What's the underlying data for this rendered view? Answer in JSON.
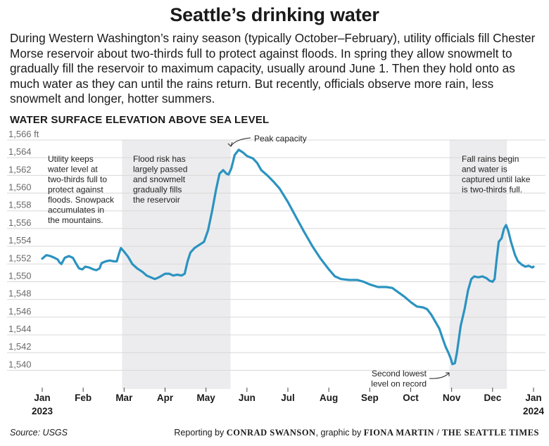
{
  "title": "Seattle’s drinking water",
  "intro": "During Western Washington’s rainy season (typically October–February), utility officials fill Chester Morse reservoir about two-thirds full to protect against floods. In spring they allow snowmelt to gradually fill the reservoir to maximum capacity, usually around June 1. Then they hold onto as much water as they can until the rains return. But recently, officials observe more rain, less snowmelt and longer, hotter summers.",
  "section_label": "WATER SURFACE ELEVATION ABOVE SEA LEVEL",
  "source": "Source: USGS",
  "credit": {
    "prefix": "Reporting by",
    "reporter": "CONRAD SWANSON",
    "middle": ", graphic by",
    "graphic": "FIONA MARTIN",
    "separator": " / ",
    "outlet": "THE SEATTLE TIMES"
  },
  "chart_data": {
    "type": "line",
    "title": "",
    "xlabel": "",
    "ylabel": "",
    "units": "ft",
    "ylim": [
      1539,
      1566
    ],
    "y_ticks": [
      "1,566 ft",
      "1,564",
      "1,562",
      "1,560",
      "1,558",
      "1,556",
      "1,554",
      "1,552",
      "1,550",
      "1,548",
      "1,546",
      "1,544",
      "1,542",
      "1,540"
    ],
    "y_tick_values": [
      1566,
      1564,
      1562,
      1560,
      1558,
      1556,
      1554,
      1552,
      1550,
      1548,
      1546,
      1544,
      1542,
      1540
    ],
    "x_ticks": [
      "Jan",
      "Feb",
      "Mar",
      "Apr",
      "May",
      "Jun",
      "Jul",
      "Aug",
      "Sep",
      "Oct",
      "Nov",
      "Dec",
      "Jan"
    ],
    "x_tick_years": [
      "2023",
      "",
      "",
      "",
      "",
      "",
      "",
      "",
      "",
      "",
      "",
      "",
      "2024"
    ],
    "grid": "horizontal",
    "line_color": "#2b93c0",
    "shade_color": "#ececee",
    "shaded_periods": [
      {
        "start_month": 1.95,
        "end_month": 4.6
      },
      {
        "start_month": 9.95,
        "end_month": 11.35
      }
    ],
    "series": [
      {
        "points": [
          [
            0.0,
            1552.6
          ],
          [
            0.1,
            1553.0
          ],
          [
            0.2,
            1552.9
          ],
          [
            0.3,
            1552.7
          ],
          [
            0.38,
            1552.5
          ],
          [
            0.42,
            1552.2
          ],
          [
            0.47,
            1552.0
          ],
          [
            0.55,
            1552.7
          ],
          [
            0.65,
            1552.9
          ],
          [
            0.75,
            1552.7
          ],
          [
            0.82,
            1552.1
          ],
          [
            0.9,
            1551.5
          ],
          [
            0.98,
            1551.4
          ],
          [
            1.05,
            1551.7
          ],
          [
            1.15,
            1551.6
          ],
          [
            1.25,
            1551.4
          ],
          [
            1.32,
            1551.3
          ],
          [
            1.4,
            1551.5
          ],
          [
            1.45,
            1552.1
          ],
          [
            1.55,
            1552.3
          ],
          [
            1.65,
            1552.4
          ],
          [
            1.75,
            1552.3
          ],
          [
            1.82,
            1552.3
          ],
          [
            1.87,
            1553.1
          ],
          [
            1.92,
            1553.8
          ],
          [
            2.0,
            1553.4
          ],
          [
            2.1,
            1552.8
          ],
          [
            2.2,
            1552.0
          ],
          [
            2.32,
            1551.5
          ],
          [
            2.45,
            1551.1
          ],
          [
            2.55,
            1550.7
          ],
          [
            2.65,
            1550.5
          ],
          [
            2.75,
            1550.3
          ],
          [
            2.85,
            1550.5
          ],
          [
            3.0,
            1550.9
          ],
          [
            3.1,
            1550.9
          ],
          [
            3.2,
            1550.7
          ],
          [
            3.3,
            1550.8
          ],
          [
            3.4,
            1550.7
          ],
          [
            3.48,
            1550.9
          ],
          [
            3.55,
            1552.3
          ],
          [
            3.62,
            1553.3
          ],
          [
            3.72,
            1553.8
          ],
          [
            3.85,
            1554.2
          ],
          [
            3.95,
            1554.5
          ],
          [
            4.05,
            1555.8
          ],
          [
            4.15,
            1558.0
          ],
          [
            4.25,
            1560.5
          ],
          [
            4.33,
            1562.2
          ],
          [
            4.42,
            1562.6
          ],
          [
            4.5,
            1562.2
          ],
          [
            4.55,
            1562.1
          ],
          [
            4.62,
            1562.8
          ],
          [
            4.7,
            1564.3
          ],
          [
            4.8,
            1564.9
          ],
          [
            4.9,
            1564.6
          ],
          [
            5.0,
            1564.2
          ],
          [
            5.15,
            1563.9
          ],
          [
            5.25,
            1563.4
          ],
          [
            5.35,
            1562.6
          ],
          [
            5.5,
            1562.0
          ],
          [
            5.65,
            1561.3
          ],
          [
            5.8,
            1560.5
          ],
          [
            6.0,
            1559.0
          ],
          [
            6.2,
            1557.3
          ],
          [
            6.4,
            1555.6
          ],
          [
            6.6,
            1554.0
          ],
          [
            6.8,
            1552.6
          ],
          [
            7.0,
            1551.4
          ],
          [
            7.15,
            1550.6
          ],
          [
            7.3,
            1550.3
          ],
          [
            7.5,
            1550.2
          ],
          [
            7.7,
            1550.2
          ],
          [
            7.85,
            1550.0
          ],
          [
            8.0,
            1549.7
          ],
          [
            8.2,
            1549.4
          ],
          [
            8.4,
            1549.4
          ],
          [
            8.55,
            1549.3
          ],
          [
            8.7,
            1548.8
          ],
          [
            8.85,
            1548.3
          ],
          [
            9.0,
            1547.7
          ],
          [
            9.15,
            1547.2
          ],
          [
            9.3,
            1547.1
          ],
          [
            9.4,
            1546.9
          ],
          [
            9.5,
            1546.3
          ],
          [
            9.6,
            1545.5
          ],
          [
            9.7,
            1544.7
          ],
          [
            9.78,
            1543.6
          ],
          [
            9.85,
            1542.7
          ],
          [
            9.92,
            1542.0
          ],
          [
            9.98,
            1541.3
          ],
          [
            10.02,
            1540.7
          ],
          [
            10.08,
            1540.8
          ],
          [
            10.13,
            1542.0
          ],
          [
            10.22,
            1545.0
          ],
          [
            10.32,
            1547.0
          ],
          [
            10.4,
            1549.0
          ],
          [
            10.48,
            1550.3
          ],
          [
            10.55,
            1550.6
          ],
          [
            10.65,
            1550.5
          ],
          [
            10.75,
            1550.6
          ],
          [
            10.85,
            1550.4
          ],
          [
            10.93,
            1550.1
          ],
          [
            11.0,
            1550.0
          ],
          [
            11.05,
            1550.3
          ],
          [
            11.1,
            1552.5
          ],
          [
            11.15,
            1554.5
          ],
          [
            11.22,
            1554.9
          ],
          [
            11.28,
            1556.0
          ],
          [
            11.33,
            1556.4
          ],
          [
            11.38,
            1555.8
          ],
          [
            11.45,
            1554.5
          ],
          [
            11.55,
            1553.0
          ],
          [
            11.62,
            1552.3
          ],
          [
            11.72,
            1551.9
          ],
          [
            11.8,
            1551.7
          ],
          [
            11.88,
            1551.8
          ],
          [
            11.97,
            1551.6
          ],
          [
            12.0,
            1551.7
          ]
        ]
      }
    ],
    "annotations": [
      {
        "name": "annotation-utility",
        "lines": [
          "Utility keeps",
          "water level at",
          "two-thirds full to",
          "protect against",
          "floods. Snowpack",
          "accumulates in",
          "the mountains."
        ]
      },
      {
        "name": "annotation-flood-risk",
        "lines": [
          "Flood risk has",
          "largely passed",
          "and snowmelt",
          "gradually fills",
          "the reservoir"
        ]
      },
      {
        "name": "annotation-peak",
        "lines": [
          "Peak capacity"
        ]
      },
      {
        "name": "annotation-fall-rains",
        "lines": [
          "Fall rains begin",
          "and water is",
          "captured until lake",
          "is two-thirds full."
        ]
      },
      {
        "name": "annotation-second-lowest",
        "lines": [
          "Second lowest",
          "level on record"
        ]
      }
    ]
  }
}
